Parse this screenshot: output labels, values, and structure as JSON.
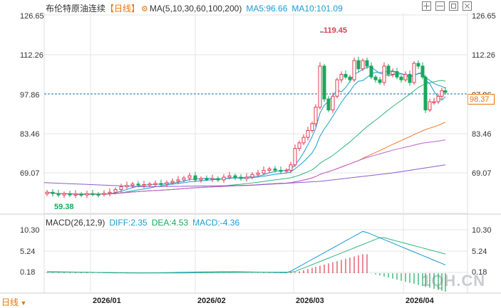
{
  "header": {
    "instrument": "布伦特原油连续",
    "period_tag": "【日线】",
    "ma_settings": "MA(5,10,30,60,100,200)",
    "ma5": "MA5:96.66",
    "ma10": "MA10:101.09",
    "gear_icon": "gear-icon"
  },
  "toolbar": {
    "icons": [
      "crosshair-icon",
      "minus-icon",
      "square-icon",
      "close-icon"
    ]
  },
  "price_axis": {
    "left": [
      "126.65",
      "112.26",
      "97.86",
      "83.46",
      "69.07"
    ],
    "right": [
      "126.65",
      "112.26",
      "97.86",
      "83.46",
      "69.07"
    ],
    "current_price": "98.37",
    "high_label": "119.45",
    "low_label": "59.38"
  },
  "macd": {
    "title": "MACD(26,12,9)",
    "diff": "DIFF:2.35",
    "dea": "DEA:4.53",
    "macd": "MACD:-4.36",
    "axis_left": [
      "10.30",
      "5.24",
      "0.18"
    ],
    "axis_right": [
      "10.30",
      "5.24",
      "0.18"
    ]
  },
  "x_axis": [
    "2026/01",
    "2026/02",
    "2026/03",
    "2026/04"
  ],
  "footer": {
    "period_selector": "日线"
  },
  "watermark": "1QH.CN",
  "colors": {
    "up": "#e03c50",
    "down": "#19a85c",
    "accent": "#e8730a",
    "ma5": "#1a9bd7"
  },
  "chart_data": {
    "type": "candlestick",
    "ylim": [
      59.38,
      126.65
    ],
    "high": 119.45,
    "low": 59.38,
    "last_close": 98.37
  }
}
